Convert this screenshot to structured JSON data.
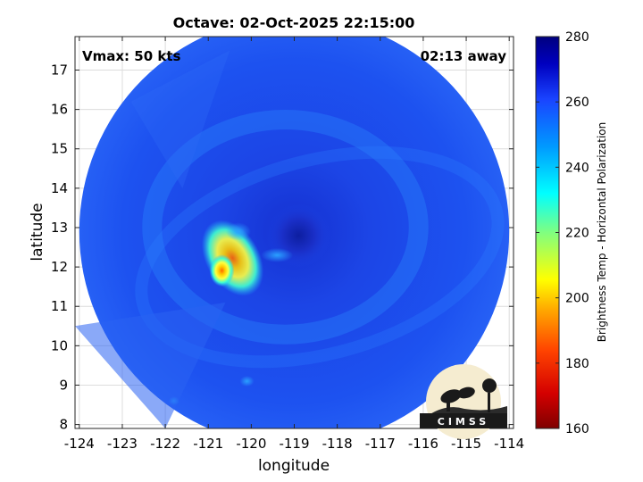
{
  "title": "Octave: 02-Oct-2025 22:15:00",
  "annotations": {
    "vmax": "Vmax: 50 kts",
    "time_away": "02:13 away"
  },
  "axes": {
    "xlabel": "longitude",
    "ylabel": "latitude",
    "xlim": [
      -124.1,
      -113.9
    ],
    "ylim": [
      7.9,
      17.85
    ],
    "xticks": [
      -124,
      -123,
      -122,
      -121,
      -120,
      -119,
      -118,
      -117,
      -116,
      -115,
      -114
    ],
    "yticks": [
      8,
      9,
      10,
      11,
      12,
      13,
      14,
      15,
      16,
      17
    ],
    "grid": true
  },
  "colorbar": {
    "label": "Brightness Temp - Horizontal Polarization",
    "min": 160,
    "max": 280,
    "ticks": [
      160,
      180,
      200,
      220,
      240,
      260,
      280
    ],
    "colormap": [
      "#7f0000",
      "#ff0000",
      "#ff9900",
      "#ffff00",
      "#00ffff",
      "#1e6bff",
      "#0000aa",
      "#00007f"
    ]
  },
  "storm": {
    "name": "Octave",
    "center_lon": -118.9,
    "center_lat": 12.8,
    "swath_center_lon": -119.0,
    "swath_center_lat": 12.9,
    "swath_radius_deg": 5.0
  },
  "logo": {
    "text": "CIMSS"
  }
}
